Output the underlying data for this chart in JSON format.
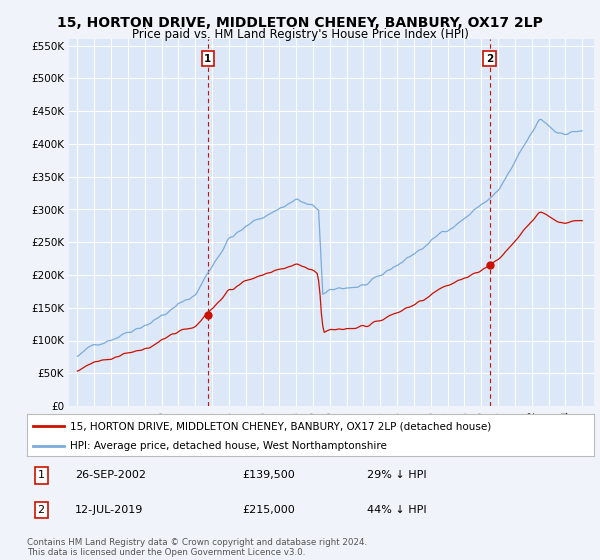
{
  "title": "15, HORTON DRIVE, MIDDLETON CHENEY, BANBURY, OX17 2LP",
  "subtitle": "Price paid vs. HM Land Registry's House Price Index (HPI)",
  "title_fontsize": 10,
  "subtitle_fontsize": 8.5,
  "ylabel_ticks": [
    "£0",
    "£50K",
    "£100K",
    "£150K",
    "£200K",
    "£250K",
    "£300K",
    "£350K",
    "£400K",
    "£450K",
    "£500K",
    "£550K"
  ],
  "ytick_values": [
    0,
    50000,
    100000,
    150000,
    200000,
    250000,
    300000,
    350000,
    400000,
    450000,
    500000,
    550000
  ],
  "ylim": [
    0,
    560000
  ],
  "background_color": "#f0f4fa",
  "plot_bg_color": "#dce8f8",
  "grid_color": "#ffffff",
  "hpi_color": "#7aabdb",
  "price_color": "#cc1100",
  "legend_line1": "15, HORTON DRIVE, MIDDLETON CHENEY, BANBURY, OX17 2LP (detached house)",
  "legend_line2": "HPI: Average price, detached house, West Northamptonshire",
  "footer": "Contains HM Land Registry data © Crown copyright and database right 2024.\nThis data is licensed under the Open Government Licence v3.0.",
  "vline1_year": 2002.75,
  "vline2_year": 2019.5,
  "purchase1_value": 139500,
  "purchase2_value": 215000,
  "start_year": 1995,
  "end_year": 2025
}
